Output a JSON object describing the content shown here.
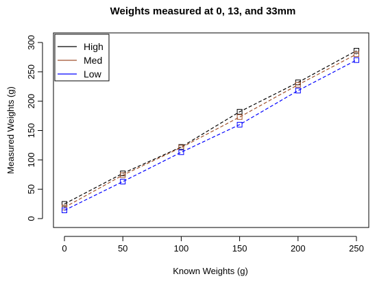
{
  "chart_data": {
    "type": "line",
    "title": "Weights measured at 0, 13, and 33mm",
    "xlabel": "Known Weights (g)",
    "ylabel": "Measured Weights (g)",
    "x": [
      0,
      50,
      100,
      150,
      200,
      250
    ],
    "xlim": [
      0,
      250
    ],
    "ylim": [
      0,
      300
    ],
    "xticks": [
      0,
      50,
      100,
      150,
      200,
      250
    ],
    "yticks": [
      0,
      50,
      100,
      150,
      200,
      250,
      300
    ],
    "grid": false,
    "legend_position": "top-left",
    "series": [
      {
        "name": "High",
        "color": "#000000",
        "values": [
          25,
          77,
          122,
          182,
          232,
          286
        ]
      },
      {
        "name": "Med",
        "color": "#a0522d",
        "values": [
          19,
          74,
          121,
          173,
          228,
          280
        ]
      },
      {
        "name": "Low",
        "color": "#0000ff",
        "values": [
          14,
          63,
          113,
          160,
          218,
          270
        ]
      }
    ]
  }
}
